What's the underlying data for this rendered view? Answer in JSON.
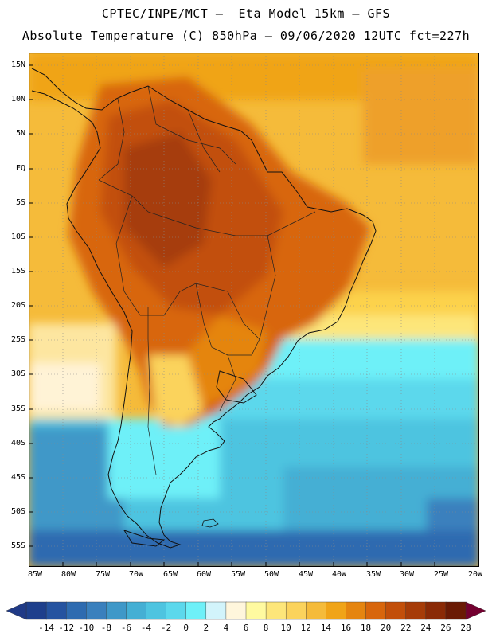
{
  "header": {
    "line1": "CPTEC/INPE/MCT –  Eta Model 15km – GFS",
    "line2": "Absolute Temperature (C) 850hPa – 09/06/2020 12UTC fct=227h"
  },
  "axes": {
    "lat_labels": [
      "15N",
      "10N",
      "5N",
      "EQ",
      "5S",
      "10S",
      "15S",
      "20S",
      "25S",
      "30S",
      "35S",
      "40S",
      "45S",
      "50S",
      "55S"
    ],
    "lon_labels": [
      "85W",
      "80W",
      "75W",
      "70W",
      "65W",
      "60W",
      "55W",
      "50W",
      "45W",
      "40W",
      "35W",
      "30W",
      "25W",
      "20W"
    ]
  },
  "colorbar": {
    "labels": [
      "-14",
      "-12",
      "-10",
      "-8",
      "-6",
      "-4",
      "-2",
      "0",
      "2",
      "4",
      "6",
      "8",
      "10",
      "12",
      "14",
      "16",
      "18",
      "20",
      "22",
      "24",
      "26",
      "28"
    ],
    "colors": [
      "#1e3f8c",
      "#2553a0",
      "#2e6bb0",
      "#3a80bd",
      "#3f98c8",
      "#44afd4",
      "#4ec4e0",
      "#5cd8ec",
      "#6ef0f8",
      "#d2f4fb",
      "#fff6dc",
      "#fffaa0",
      "#fde67a",
      "#fbd35c",
      "#f5bb3a",
      "#f0a418",
      "#e58510",
      "#d8660c",
      "#c24f0a",
      "#a63c08",
      "#8a2a06",
      "#6a1a04"
    ]
  }
}
